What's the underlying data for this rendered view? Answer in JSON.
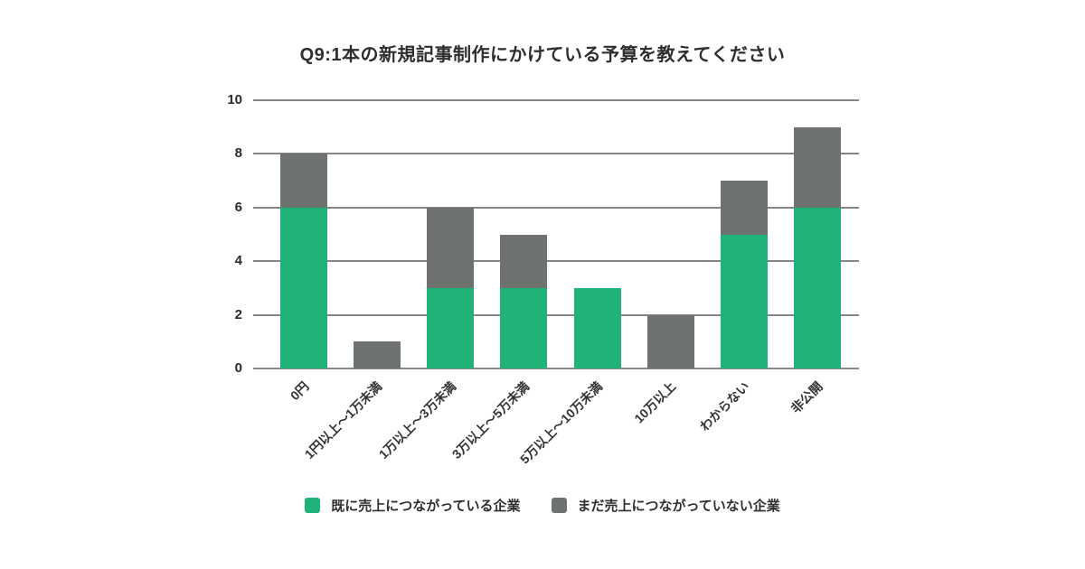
{
  "chart_data": {
    "type": "bar",
    "stacked": true,
    "title": "Q9:1本の新規記事制作にかけている予算を教えてください",
    "categories": [
      "0円",
      "1円以上〜1万未満",
      "1万以上〜3万未満",
      "3万以上〜5万未満",
      "5万以上〜10万未満",
      "10万以上",
      "わからない",
      "非公開"
    ],
    "series": [
      {
        "name": "既に売上につながっている企業",
        "color": "#1FB377",
        "values": [
          6,
          0,
          3,
          3,
          3,
          0,
          5,
          6
        ]
      },
      {
        "name": "まだ売上につながっていない企業",
        "color": "#6F7370",
        "values": [
          2,
          1,
          3,
          2,
          0,
          2,
          2,
          3
        ]
      }
    ],
    "totals": [
      8,
      1,
      6,
      5,
      3,
      2,
      7,
      9
    ],
    "ylim": [
      0,
      10
    ],
    "yticks": [
      0,
      2,
      4,
      6,
      8,
      10
    ],
    "grid": true,
    "grid_color": "#868686",
    "text_color": "#2e2e2e",
    "background": "#ffffff",
    "legend_position": "bottom",
    "xlabel": "",
    "ylabel": ""
  }
}
